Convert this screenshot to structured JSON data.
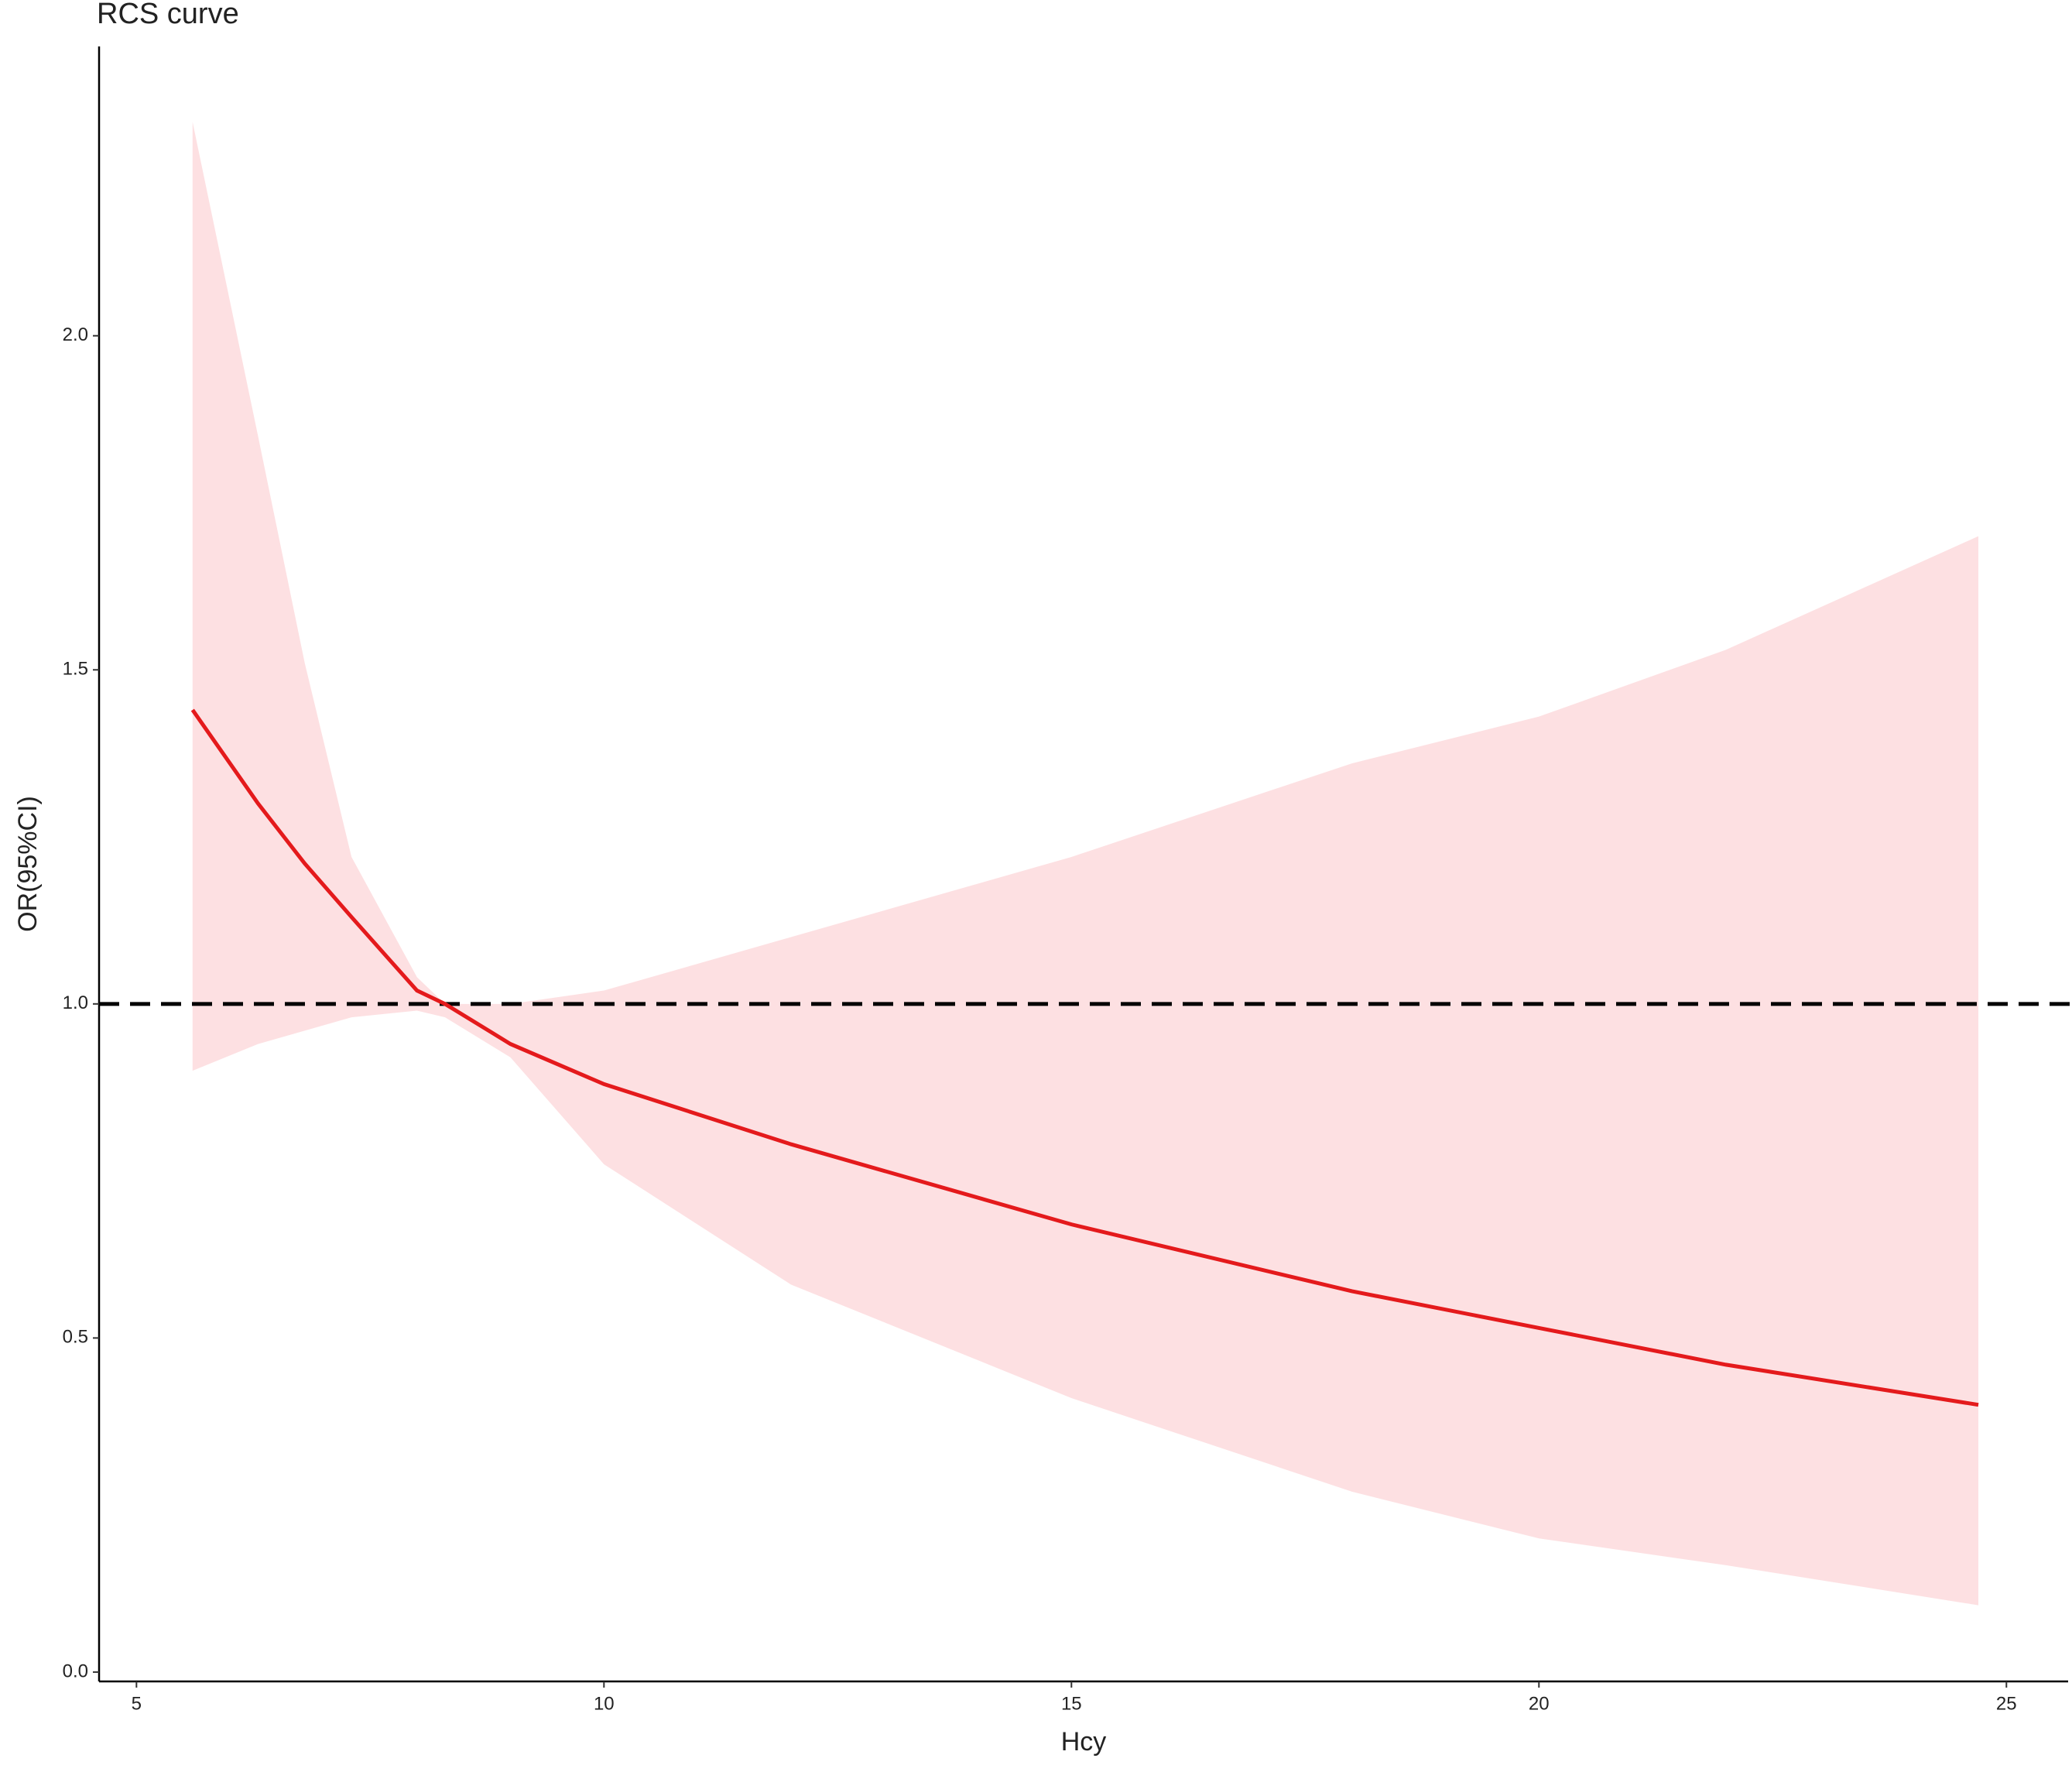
{
  "chart_data": {
    "type": "line",
    "title": "RCS curve",
    "x_label": "Hcy",
    "y_label": "OR(95%CI)",
    "x": [
      5.6,
      6.3,
      6.8,
      7.3,
      8.0,
      8.3,
      9,
      10,
      12,
      15,
      18,
      20,
      22,
      24.7
    ],
    "values": [
      1.44,
      1.3,
      1.21,
      1.13,
      1.02,
      1.0,
      0.94,
      0.88,
      0.79,
      0.67,
      0.57,
      0.515,
      0.46,
      0.4
    ],
    "upper": [
      2.32,
      1.85,
      1.51,
      1.22,
      1.04,
      1.0,
      1.0,
      1.02,
      1.1,
      1.22,
      1.36,
      1.43,
      1.53,
      1.7
    ],
    "lower": [
      0.9,
      0.94,
      0.96,
      0.98,
      0.99,
      0.98,
      0.92,
      0.76,
      0.58,
      0.41,
      0.27,
      0.2,
      0.16,
      0.1
    ],
    "color": "#e41a1c",
    "band_color": "#fde0e2",
    "hline": 1,
    "xlim": [
      4.6,
      25.66
    ],
    "ylim": [
      -0.014,
      2.433
    ],
    "xticks": [
      5,
      10,
      15,
      20,
      25
    ],
    "yticks": [
      {
        "value": 0,
        "label": "0.0"
      },
      0.5,
      {
        "value": 1,
        "label": "1.0"
      },
      1.5,
      {
        "value": 2,
        "label": "2.0"
      }
    ],
    "grid": false
  }
}
